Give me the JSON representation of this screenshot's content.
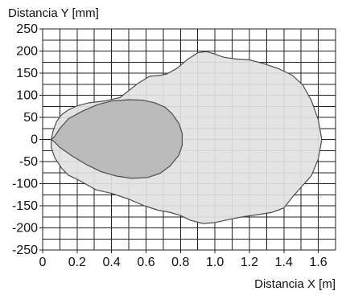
{
  "chart_data": {
    "type": "area",
    "xlabel": "Distancia X [m]",
    "ylabel": "Distancia Y [mm]",
    "xlim": [
      0,
      1.7
    ],
    "ylim": [
      -250,
      250
    ],
    "x_ticks": [
      0,
      0.2,
      0.4,
      0.6,
      0.8,
      1,
      1.2,
      1.4,
      1.6
    ],
    "x_tick_labels": [
      "0",
      "0.2",
      "0.4",
      "0.6",
      "0.8",
      "1.0",
      "1.2",
      "1.4",
      "1.6"
    ],
    "y_ticks": [
      250,
      200,
      150,
      100,
      50,
      0,
      -50,
      -100,
      -150,
      -200,
      -250
    ],
    "y_tick_labels": [
      "250",
      "200",
      "150",
      "100",
      "50",
      "0",
      "-50",
      "-100",
      "-150",
      "-200",
      "-250"
    ],
    "x_grid_step": 0.1,
    "y_grid_step": 25,
    "grid": true,
    "series": [
      {
        "fill": "#e2e2e2",
        "stroke": "#4d4d4d",
        "points": [
          [
            0.05,
            0
          ],
          [
            0.06,
            18
          ],
          [
            0.08,
            40
          ],
          [
            0.11,
            56
          ],
          [
            0.15,
            67
          ],
          [
            0.2,
            76
          ],
          [
            0.27,
            83
          ],
          [
            0.36,
            87
          ],
          [
            0.45,
            95
          ],
          [
            0.55,
            126
          ],
          [
            0.62,
            143
          ],
          [
            0.68,
            145
          ],
          [
            0.72,
            148
          ],
          [
            0.78,
            161
          ],
          [
            0.84,
            181
          ],
          [
            0.9,
            196
          ],
          [
            0.95,
            199
          ],
          [
            1.0,
            193
          ],
          [
            1.05,
            186
          ],
          [
            1.12,
            182
          ],
          [
            1.2,
            180
          ],
          [
            1.28,
            172
          ],
          [
            1.37,
            160
          ],
          [
            1.45,
            145
          ],
          [
            1.51,
            123
          ],
          [
            1.56,
            88
          ],
          [
            1.6,
            44
          ],
          [
            1.62,
            0
          ],
          [
            1.6,
            -44
          ],
          [
            1.56,
            -82
          ],
          [
            1.5,
            -108
          ],
          [
            1.45,
            -130
          ],
          [
            1.4,
            -155
          ],
          [
            1.33,
            -165
          ],
          [
            1.25,
            -170
          ],
          [
            1.16,
            -175
          ],
          [
            1.08,
            -181
          ],
          [
            1.0,
            -188
          ],
          [
            0.93,
            -190
          ],
          [
            0.86,
            -183
          ],
          [
            0.8,
            -172
          ],
          [
            0.74,
            -165
          ],
          [
            0.67,
            -160
          ],
          [
            0.59,
            -150
          ],
          [
            0.5,
            -135
          ],
          [
            0.4,
            -122
          ],
          [
            0.31,
            -114
          ],
          [
            0.21,
            -92
          ],
          [
            0.15,
            -81
          ],
          [
            0.11,
            -65
          ],
          [
            0.07,
            -41
          ],
          [
            0.05,
            -18
          ]
        ]
      },
      {
        "fill": "#b7b7b7",
        "stroke": "#4d4d4d",
        "points": [
          [
            0.05,
            0
          ],
          [
            0.07,
            7
          ],
          [
            0.1,
            25
          ],
          [
            0.15,
            47
          ],
          [
            0.23,
            64
          ],
          [
            0.32,
            79
          ],
          [
            0.4,
            87
          ],
          [
            0.5,
            90
          ],
          [
            0.58,
            89
          ],
          [
            0.65,
            83
          ],
          [
            0.71,
            73
          ],
          [
            0.75,
            59
          ],
          [
            0.79,
            37
          ],
          [
            0.81,
            14
          ],
          [
            0.81,
            -13
          ],
          [
            0.79,
            -36
          ],
          [
            0.74,
            -60
          ],
          [
            0.68,
            -77
          ],
          [
            0.61,
            -86
          ],
          [
            0.52,
            -88
          ],
          [
            0.43,
            -83
          ],
          [
            0.34,
            -73
          ],
          [
            0.25,
            -56
          ],
          [
            0.17,
            -37
          ],
          [
            0.1,
            -18
          ],
          [
            0.07,
            -6
          ]
        ]
      }
    ]
  }
}
